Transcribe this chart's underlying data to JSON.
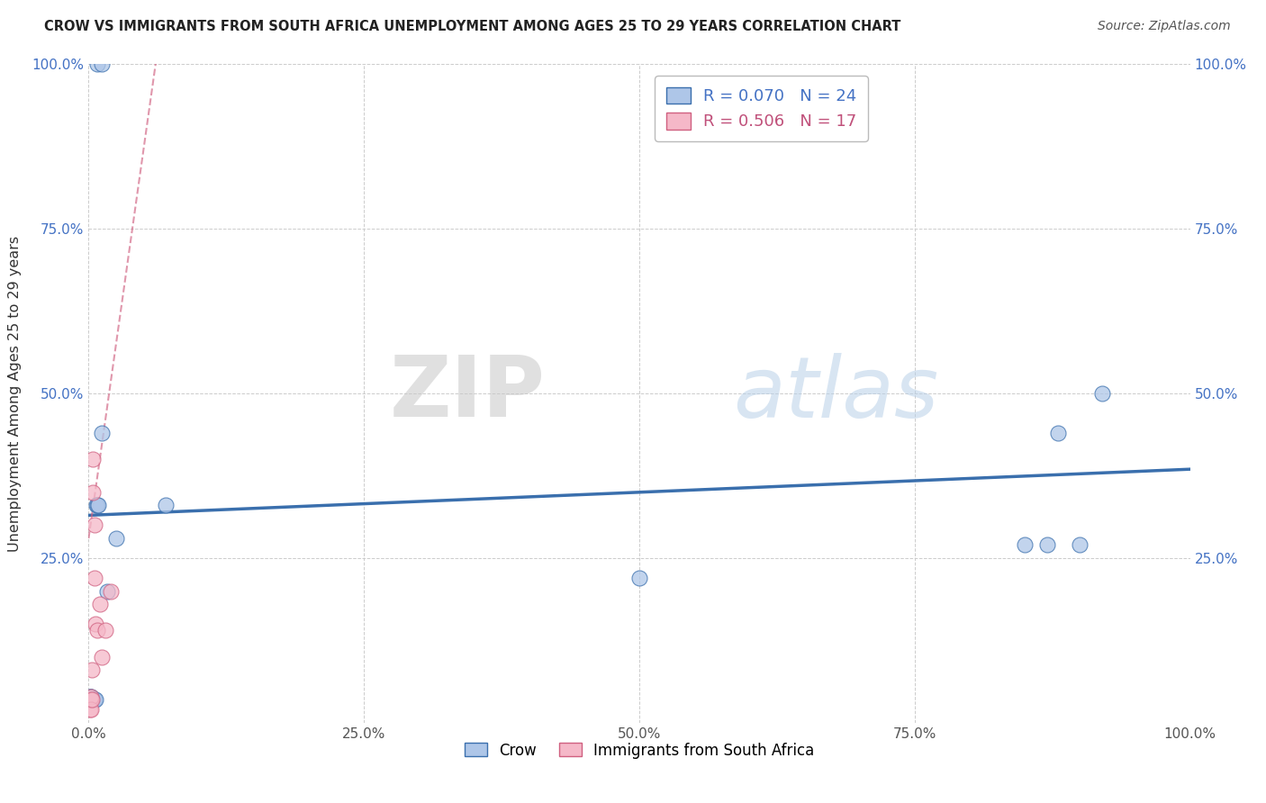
{
  "title": "CROW VS IMMIGRANTS FROM SOUTH AFRICA UNEMPLOYMENT AMONG AGES 25 TO 29 YEARS CORRELATION CHART",
  "source": "Source: ZipAtlas.com",
  "ylabel": "Unemployment Among Ages 25 to 29 years",
  "crow_R": 0.07,
  "crow_N": 24,
  "immigrant_R": 0.506,
  "immigrant_N": 17,
  "crow_color": "#aec6e8",
  "crow_line_color": "#3a6fad",
  "immigrant_color": "#f5b8c8",
  "immigrant_line_color": "#d06080",
  "watermark_zip": "ZIP",
  "watermark_atlas": "atlas",
  "crow_x": [
    0.008,
    0.012,
    0.001,
    0.001,
    0.002,
    0.002,
    0.003,
    0.003,
    0.004,
    0.005,
    0.006,
    0.007,
    0.008,
    0.009,
    0.012,
    0.017,
    0.025,
    0.07,
    0.85,
    0.87,
    0.88,
    0.9,
    0.92,
    0.5
  ],
  "crow_y": [
    1.0,
    1.0,
    0.035,
    0.04,
    0.04,
    0.04,
    0.035,
    0.035,
    0.035,
    0.035,
    0.035,
    0.33,
    0.33,
    0.33,
    0.44,
    0.2,
    0.28,
    0.33,
    0.27,
    0.27,
    0.44,
    0.27,
    0.5,
    0.22
  ],
  "immigrant_x": [
    0.001,
    0.001,
    0.002,
    0.002,
    0.002,
    0.003,
    0.003,
    0.004,
    0.004,
    0.005,
    0.005,
    0.006,
    0.008,
    0.01,
    0.012,
    0.015,
    0.02
  ],
  "immigrant_y": [
    0.035,
    0.02,
    0.035,
    0.04,
    0.02,
    0.035,
    0.08,
    0.35,
    0.4,
    0.3,
    0.22,
    0.15,
    0.14,
    0.18,
    0.1,
    0.14,
    0.2
  ],
  "xlim": [
    0,
    1.0
  ],
  "ylim": [
    0,
    1.0
  ],
  "xticks": [
    0.0,
    0.25,
    0.5,
    0.75,
    1.0
  ],
  "xtick_labels": [
    "0.0%",
    "25.0%",
    "50.0%",
    "75.0%",
    "100.0%"
  ],
  "yticks": [
    0.0,
    0.25,
    0.5,
    0.75,
    1.0
  ],
  "ytick_labels": [
    "",
    "25.0%",
    "50.0%",
    "75.0%",
    "100.0%"
  ]
}
